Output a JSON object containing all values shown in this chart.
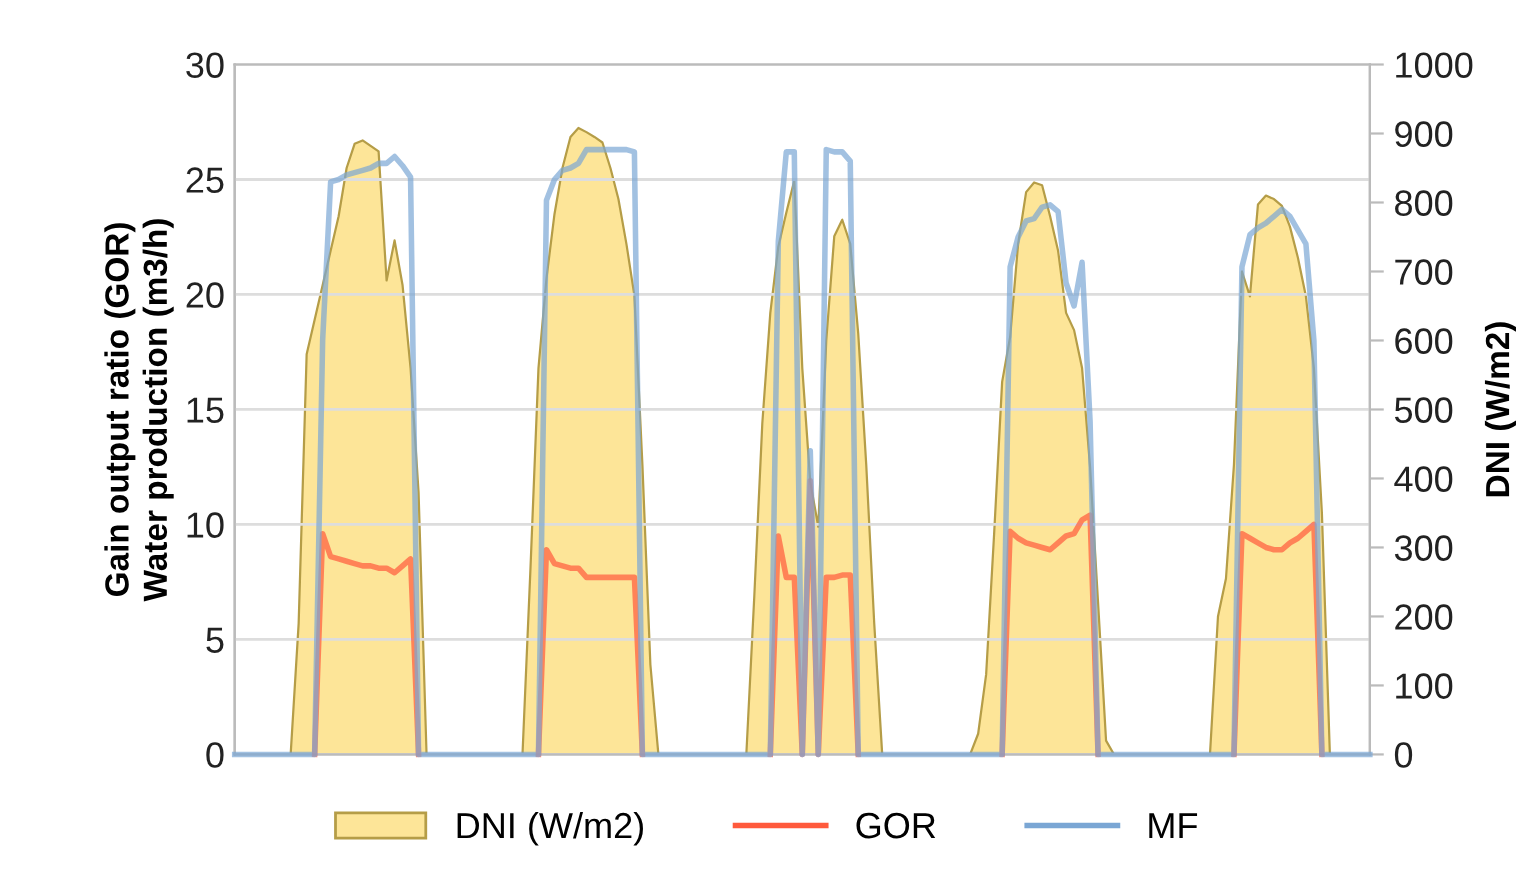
{
  "chart_data": {
    "type": "line",
    "ylabel": "Gain output ratio (GOR)\nWater production (m3/h)",
    "y2label": "DNI (W/m2)",
    "ylim": [
      0,
      30
    ],
    "yticks": [
      0,
      5,
      10,
      15,
      20,
      25,
      30
    ],
    "y2lim": [
      0,
      1000
    ],
    "y2ticks": [
      0,
      100,
      200,
      300,
      400,
      500,
      600,
      700,
      800,
      900,
      1000
    ],
    "grid": "y",
    "legend": "bottom",
    "categories": [
      null,
      null,
      null,
      null,
      null,
      null,
      null,
      null,
      null,
      null,
      null,
      null,
      null,
      null,
      null,
      null,
      null,
      null,
      null,
      null,
      null,
      null,
      null,
      null,
      null,
      null,
      null,
      null,
      null,
      null,
      null,
      null,
      null,
      null,
      null,
      null,
      null,
      null,
      null,
      null,
      null,
      null,
      null,
      null,
      null,
      null,
      null,
      null,
      null,
      null,
      null,
      null,
      null,
      null,
      null,
      null,
      null,
      null,
      null,
      null,
      null,
      null,
      null,
      null,
      null,
      null,
      null,
      null,
      null,
      null,
      null,
      null,
      null,
      null,
      null,
      null,
      null,
      null,
      null,
      null,
      null,
      null,
      null,
      null,
      null,
      null,
      null,
      null,
      null,
      null,
      null,
      null,
      null,
      null,
      null,
      null,
      null,
      null,
      null,
      null,
      null,
      null,
      null,
      null,
      null,
      null,
      null,
      null,
      null,
      null,
      null,
      null,
      null,
      null,
      null,
      null,
      null,
      null,
      null,
      null,
      null,
      null,
      null,
      null,
      null,
      null,
      null,
      null,
      null,
      null,
      null,
      null,
      null,
      null,
      null,
      null,
      null,
      null,
      null,
      null,
      null,
      null,
      null
    ],
    "series": [
      {
        "name": "DNI (W/m2)",
        "type": "area",
        "axis": "y2",
        "color": "#fde598",
        "values": [
          0,
          0,
          0,
          0,
          0,
          0,
          0,
          0,
          190,
          580,
          630,
          680,
          730,
          780,
          850,
          885,
          890,
          882,
          874,
          687,
          745,
          680,
          560,
          380,
          0,
          0,
          0,
          0,
          0,
          0,
          0,
          0,
          0,
          0,
          0,
          0,
          0,
          270,
          560,
          690,
          783,
          850,
          895,
          908,
          902,
          895,
          887,
          850,
          805,
          740,
          665,
          420,
          130,
          0,
          0,
          0,
          0,
          0,
          0,
          0,
          0,
          0,
          0,
          0,
          0,
          230,
          480,
          640,
          736,
          785,
          832,
          560,
          395,
          330,
          600,
          751,
          775,
          740,
          610,
          420,
          190,
          0,
          0,
          0,
          0,
          0,
          0,
          0,
          0,
          0,
          0,
          0,
          0,
          30,
          116,
          320,
          540,
          605,
          740,
          815,
          829,
          825,
          780,
          730,
          640,
          615,
          560,
          417,
          220,
          20,
          0,
          0,
          0,
          0,
          0,
          0,
          0,
          0,
          0,
          0,
          0,
          0,
          0,
          200,
          255,
          420,
          700,
          664,
          797,
          810,
          805,
          795,
          765,
          720,
          664,
          560,
          350,
          0,
          0,
          0,
          0,
          0,
          0
        ]
      },
      {
        "name": "GOR",
        "color": "#ff5a3c",
        "values": [
          null,
          null,
          null,
          null,
          null,
          null,
          null,
          null,
          null,
          null,
          0,
          9.6,
          8.6,
          8.5,
          8.4,
          8.3,
          8.2,
          8.2,
          8.1,
          8.1,
          7.9,
          8.2,
          8.5,
          0,
          null,
          null,
          null,
          null,
          null,
          null,
          null,
          null,
          null,
          null,
          null,
          null,
          null,
          null,
          0,
          8.9,
          8.3,
          8.2,
          8.1,
          8.1,
          7.7,
          7.7,
          7.7,
          7.7,
          7.7,
          7.7,
          7.7,
          0,
          null,
          null,
          null,
          null,
          null,
          null,
          null,
          null,
          null,
          null,
          null,
          null,
          null,
          null,
          null,
          0,
          9.5,
          7.7,
          7.7,
          0,
          11.9,
          0,
          7.7,
          7.7,
          7.8,
          7.8,
          0,
          null,
          null,
          null,
          null,
          null,
          null,
          null,
          null,
          null,
          null,
          null,
          null,
          null,
          null,
          null,
          null,
          null,
          0,
          9.7,
          9.4,
          9.2,
          9.1,
          9.0,
          8.9,
          9.2,
          9.5,
          9.6,
          10.2,
          10.4,
          0,
          null,
          null,
          null,
          null,
          null,
          null,
          null,
          null,
          null,
          null,
          null,
          null,
          null,
          null,
          null,
          null,
          0,
          9.6,
          9.4,
          9.2,
          9.0,
          8.9,
          8.9,
          9.2,
          9.4,
          9.7,
          10.0,
          0,
          null,
          null,
          null,
          null,
          null,
          null
        ]
      },
      {
        "name": "MF",
        "color": "#7aa6d4",
        "values": [
          0,
          0,
          0,
          0,
          0,
          0,
          0,
          0,
          0,
          0,
          0,
          18,
          24.9,
          25.0,
          25.2,
          25.3,
          25.4,
          25.5,
          25.7,
          25.7,
          26.0,
          25.6,
          25.1,
          0,
          0,
          0,
          0,
          0,
          0,
          0,
          0,
          0,
          0,
          0,
          0,
          0,
          0,
          0,
          0,
          24.1,
          25.0,
          25.4,
          25.5,
          25.7,
          26.3,
          26.3,
          26.3,
          26.3,
          26.3,
          26.3,
          26.2,
          0,
          0,
          0,
          0,
          0,
          0,
          0,
          0,
          0,
          0,
          0,
          0,
          0,
          0,
          0,
          0,
          0,
          22.3,
          26.2,
          26.2,
          0,
          13.2,
          0,
          26.3,
          26.2,
          26.2,
          25.8,
          0,
          0,
          0,
          0,
          0,
          0,
          0,
          0,
          0,
          0,
          0,
          0,
          0,
          0,
          0,
          0,
          0,
          0,
          0,
          21.2,
          22.5,
          23.2,
          23.3,
          23.8,
          23.9,
          23.6,
          20.5,
          19.5,
          21.4,
          14.5,
          0,
          0,
          0,
          0,
          0,
          0,
          0,
          0,
          0,
          0,
          0,
          0,
          0,
          0,
          0,
          0,
          0,
          0,
          21.2,
          22.6,
          22.9,
          23.1,
          23.4,
          23.7,
          23.4,
          22.8,
          22.2,
          18,
          0,
          0,
          0,
          0,
          0,
          0,
          0
        ]
      }
    ]
  }
}
